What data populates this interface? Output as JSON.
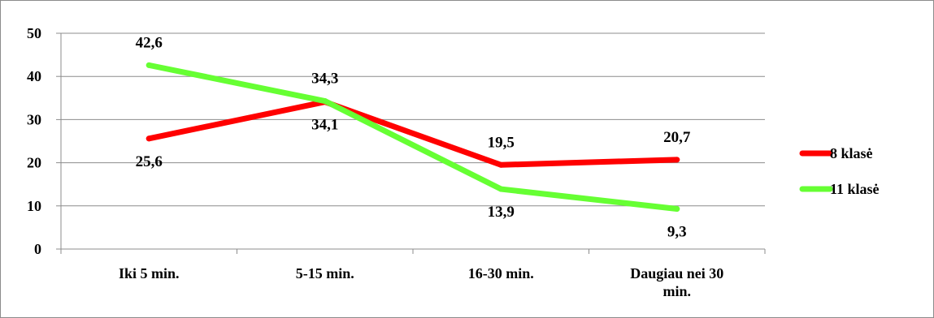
{
  "chart_data": {
    "type": "line",
    "categories": [
      "Iki 5 min.",
      "5-15 min.",
      "16-30 min.",
      "Daugiau nei 30 min."
    ],
    "series": [
      {
        "name": "8 klasė",
        "values": [
          25.6,
          34.1,
          19.5,
          20.7
        ],
        "labels": [
          "25,6",
          "34,1",
          "19,5",
          "20,7"
        ],
        "color": "#ff0000"
      },
      {
        "name": "11 klasė",
        "values": [
          42.6,
          34.3,
          13.9,
          9.3
        ],
        "labels": [
          "42,6",
          "34,3",
          "13,9",
          "9,3"
        ],
        "color": "#66ff33"
      }
    ],
    "ylim": [
      0,
      50
    ],
    "yticks": [
      0,
      10,
      20,
      30,
      40,
      50
    ],
    "grid": true,
    "legend": "right",
    "title": "",
    "xlabel": "",
    "ylabel": ""
  }
}
